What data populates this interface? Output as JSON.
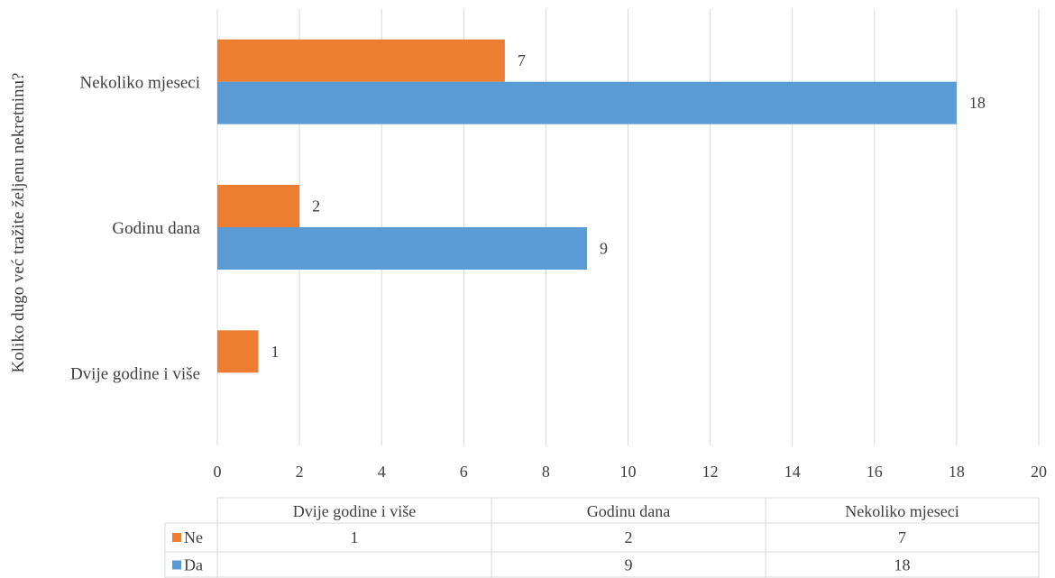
{
  "chart_data": {
    "type": "bar",
    "orientation": "horizontal",
    "categories": [
      "Dvije godine i više",
      "Godinu dana",
      "Nekoliko mjeseci"
    ],
    "series": [
      {
        "name": "Ne",
        "values": [
          1,
          2,
          7
        ],
        "color": "#ED7D31"
      },
      {
        "name": "Da",
        "values": [
          null,
          9,
          18
        ],
        "color": "#5B9BD5"
      }
    ],
    "title": "",
    "xlabel": "",
    "ylabel": "Koliko dugo već tražite željenu nekretninu?",
    "xlim": [
      0,
      20
    ],
    "xticks": [
      0,
      2,
      4,
      6,
      8,
      10,
      12,
      14,
      16,
      18,
      20
    ],
    "grid": true,
    "legend": "data-table-below",
    "data_table": {
      "columns": [
        "Dvije godine i više",
        "Godinu dana",
        "Nekoliko mjeseci"
      ],
      "rows": [
        {
          "series": "Ne",
          "values": [
            "1",
            "2",
            "7"
          ]
        },
        {
          "series": "Da",
          "values": [
            "",
            "9",
            "18"
          ]
        }
      ]
    }
  }
}
